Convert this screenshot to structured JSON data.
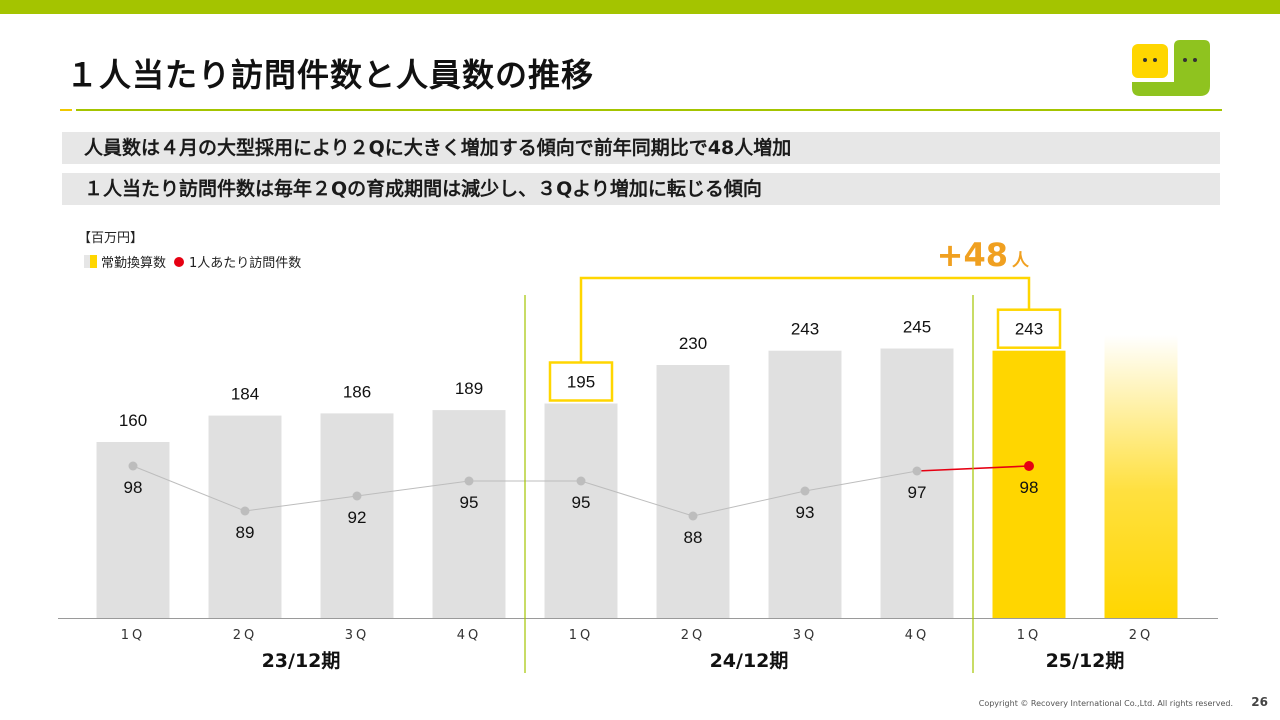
{
  "header": {
    "title": "１人当たり訪問件数と人員数の推移",
    "page_number": "26",
    "copyright": "Copyright © Recovery International Co.,Ltd. All rights reserved."
  },
  "messages": [
    "人員数は４月の大型採用により２Qに大きく増加する傾向で前年同期比で48人増加",
    "１人当たり訪問件数は毎年２Qの育成期間は減少し、３Qより増加に転じる傾向"
  ],
  "chart_data": {
    "type": "bar",
    "unit_label": "【百万円】",
    "legend": [
      "常勤換算数",
      "1人あたり訪問件数"
    ],
    "categories": [
      "1Q",
      "2Q",
      "3Q",
      "4Q",
      "1Q",
      "2Q",
      "3Q",
      "4Q",
      "1Q",
      "2Q"
    ],
    "periods": [
      {
        "label": "23/12期",
        "quarters": 4
      },
      {
        "label": "24/12期",
        "quarters": 4
      },
      {
        "label": "25/12期",
        "quarters": 2
      }
    ],
    "series": [
      {
        "name": "常勤換算数",
        "type": "bar",
        "values": [
          160,
          184,
          186,
          189,
          195,
          230,
          243,
          245,
          243,
          null
        ]
      },
      {
        "name": "1人あたり訪問件数",
        "type": "line",
        "values": [
          98,
          89,
          92,
          95,
          95,
          88,
          93,
          97,
          98,
          null
        ]
      }
    ],
    "annotation": {
      "value": "+48",
      "unit": "人",
      "from_index": 4,
      "to_index": 8
    },
    "colors": {
      "bar_gray": "#e0e0e0",
      "bar_highlight": "#ffd600",
      "line_gray": "#bdbdbd",
      "line_highlight": "#e60012",
      "accent": "#a4c400",
      "annotation": "#f0a020"
    }
  }
}
